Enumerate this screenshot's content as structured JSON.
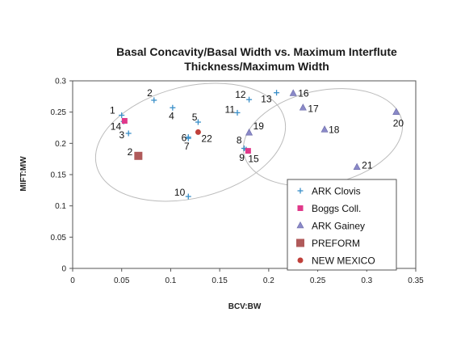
{
  "chart_data": {
    "type": "scatter",
    "title_lines": [
      "Basal Concavity/Basal Width vs. Maximum Interflute",
      "Thickness/Maximum Width"
    ],
    "xlabel": "BCV:BW",
    "ylabel": "MIFT:MW",
    "xlim": [
      0,
      0.35
    ],
    "ylim": [
      0,
      0.3
    ],
    "x_ticks": [
      "0",
      "0.05",
      "0.1",
      "0.15",
      "0.2",
      "0.25",
      "0.3",
      "0.35"
    ],
    "y_ticks": [
      "0",
      "0.05",
      "0.1",
      "0.15",
      "0.2",
      "0.25",
      "0.3"
    ],
    "legend_position": "bottom-right",
    "grid": false,
    "series": [
      {
        "name": "ARK Clovis",
        "marker": "plus",
        "color": "#3a8fc8",
        "points": [
          {
            "x": 0.05,
            "y": 0.245,
            "label": "1"
          },
          {
            "x": 0.083,
            "y": 0.269,
            "label": "2"
          },
          {
            "x": 0.057,
            "y": 0.216,
            "label": "3"
          },
          {
            "x": 0.102,
            "y": 0.257,
            "label": "4"
          },
          {
            "x": 0.128,
            "y": 0.234,
            "label": "5"
          },
          {
            "x": 0.118,
            "y": 0.21,
            "label": "6"
          },
          {
            "x": 0.118,
            "y": 0.208,
            "label": "7"
          },
          {
            "x": 0.175,
            "y": 0.192,
            "label": "8"
          },
          {
            "x": 0.177,
            "y": 0.19,
            "label": "9"
          },
          {
            "x": 0.118,
            "y": 0.115,
            "label": "10"
          },
          {
            "x": 0.168,
            "y": 0.249,
            "label": "11"
          },
          {
            "x": 0.18,
            "y": 0.27,
            "label": "12"
          },
          {
            "x": 0.208,
            "y": 0.281,
            "label": "13"
          },
          {
            "x": 0.052,
            "y": 0.235,
            "label": "14"
          }
        ]
      },
      {
        "name": "Boggs Coll.",
        "marker": "square",
        "color": "#e0398a",
        "points": [
          {
            "x": 0.053,
            "y": 0.236,
            "label": ""
          },
          {
            "x": 0.179,
            "y": 0.188,
            "label": "15"
          }
        ]
      },
      {
        "name": "ARK Gainey",
        "marker": "triangle",
        "color": "#8a89c8",
        "points": [
          {
            "x": 0.225,
            "y": 0.28,
            "label": "16"
          },
          {
            "x": 0.235,
            "y": 0.257,
            "label": "17"
          },
          {
            "x": 0.257,
            "y": 0.222,
            "label": "18"
          },
          {
            "x": 0.18,
            "y": 0.217,
            "label": "19"
          },
          {
            "x": 0.33,
            "y": 0.25,
            "label": "20"
          },
          {
            "x": 0.29,
            "y": 0.162,
            "label": "21"
          }
        ]
      },
      {
        "name": "PREFORM",
        "marker": "square-large",
        "color": "#b05a5a",
        "points": [
          {
            "x": 0.067,
            "y": 0.18,
            "label": "2"
          }
        ]
      },
      {
        "name": "NEW MEXICO",
        "marker": "circle",
        "color": "#c0403a",
        "points": [
          {
            "x": 0.128,
            "y": 0.218,
            "label": "22"
          }
        ]
      }
    ]
  }
}
